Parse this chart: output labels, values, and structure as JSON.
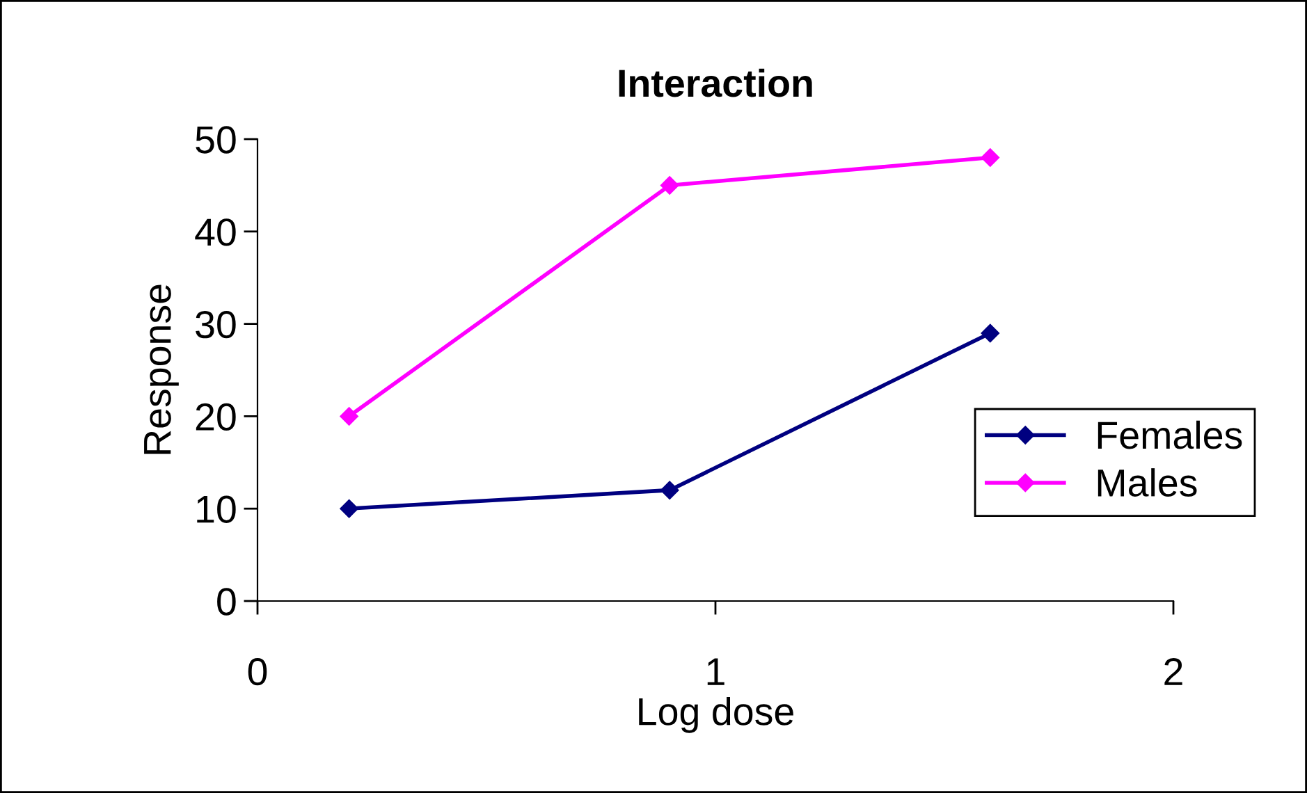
{
  "chart_data": {
    "type": "line",
    "title": "Interaction",
    "xlabel": "Log dose",
    "ylabel": "Response",
    "xlim": [
      0,
      2
    ],
    "xticks": [
      0,
      1,
      2
    ],
    "ylim": [
      0,
      50
    ],
    "yticks": [
      0,
      10,
      20,
      30,
      40,
      50
    ],
    "marker": "diamond",
    "line_style": "solid",
    "legend": "right",
    "grid": false,
    "series": [
      {
        "name": "Females",
        "color": "#000080",
        "x": [
          0.2,
          0.9,
          1.6
        ],
        "values": [
          10,
          12,
          29
        ]
      },
      {
        "name": "Males",
        "color": "#ff00ff",
        "x": [
          0.2,
          0.9,
          1.6
        ],
        "values": [
          20,
          45,
          48
        ]
      }
    ]
  }
}
